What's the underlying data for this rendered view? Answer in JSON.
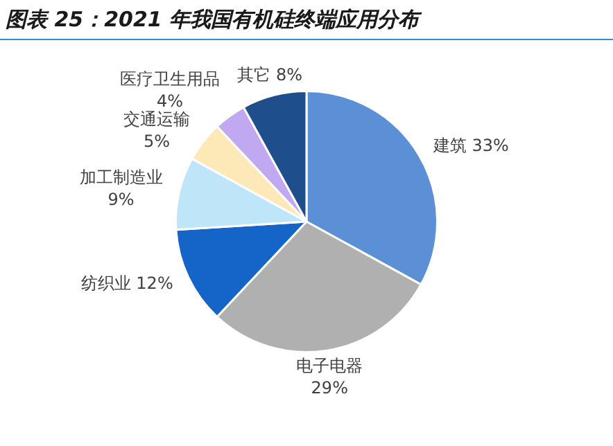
{
  "chart_data": {
    "type": "pie",
    "title": "图表 25：2021 年我国有机硅终端应用分布",
    "categories": [
      "建筑",
      "电子电器",
      "纺织业",
      "加工制造业",
      "交通运输",
      "医疗卫生用品",
      "其它"
    ],
    "values": [
      33,
      29,
      12,
      9,
      5,
      4,
      8
    ],
    "value_labels": [
      "33%",
      "29%",
      "12%",
      "9%",
      "5%",
      "4%",
      "8%"
    ],
    "colors": [
      "#5b8fd6",
      "#b0b0b0",
      "#1565c8",
      "#bfe6f8",
      "#fde9b8",
      "#c0a9f0",
      "#1f4e8c"
    ],
    "legend": false
  }
}
